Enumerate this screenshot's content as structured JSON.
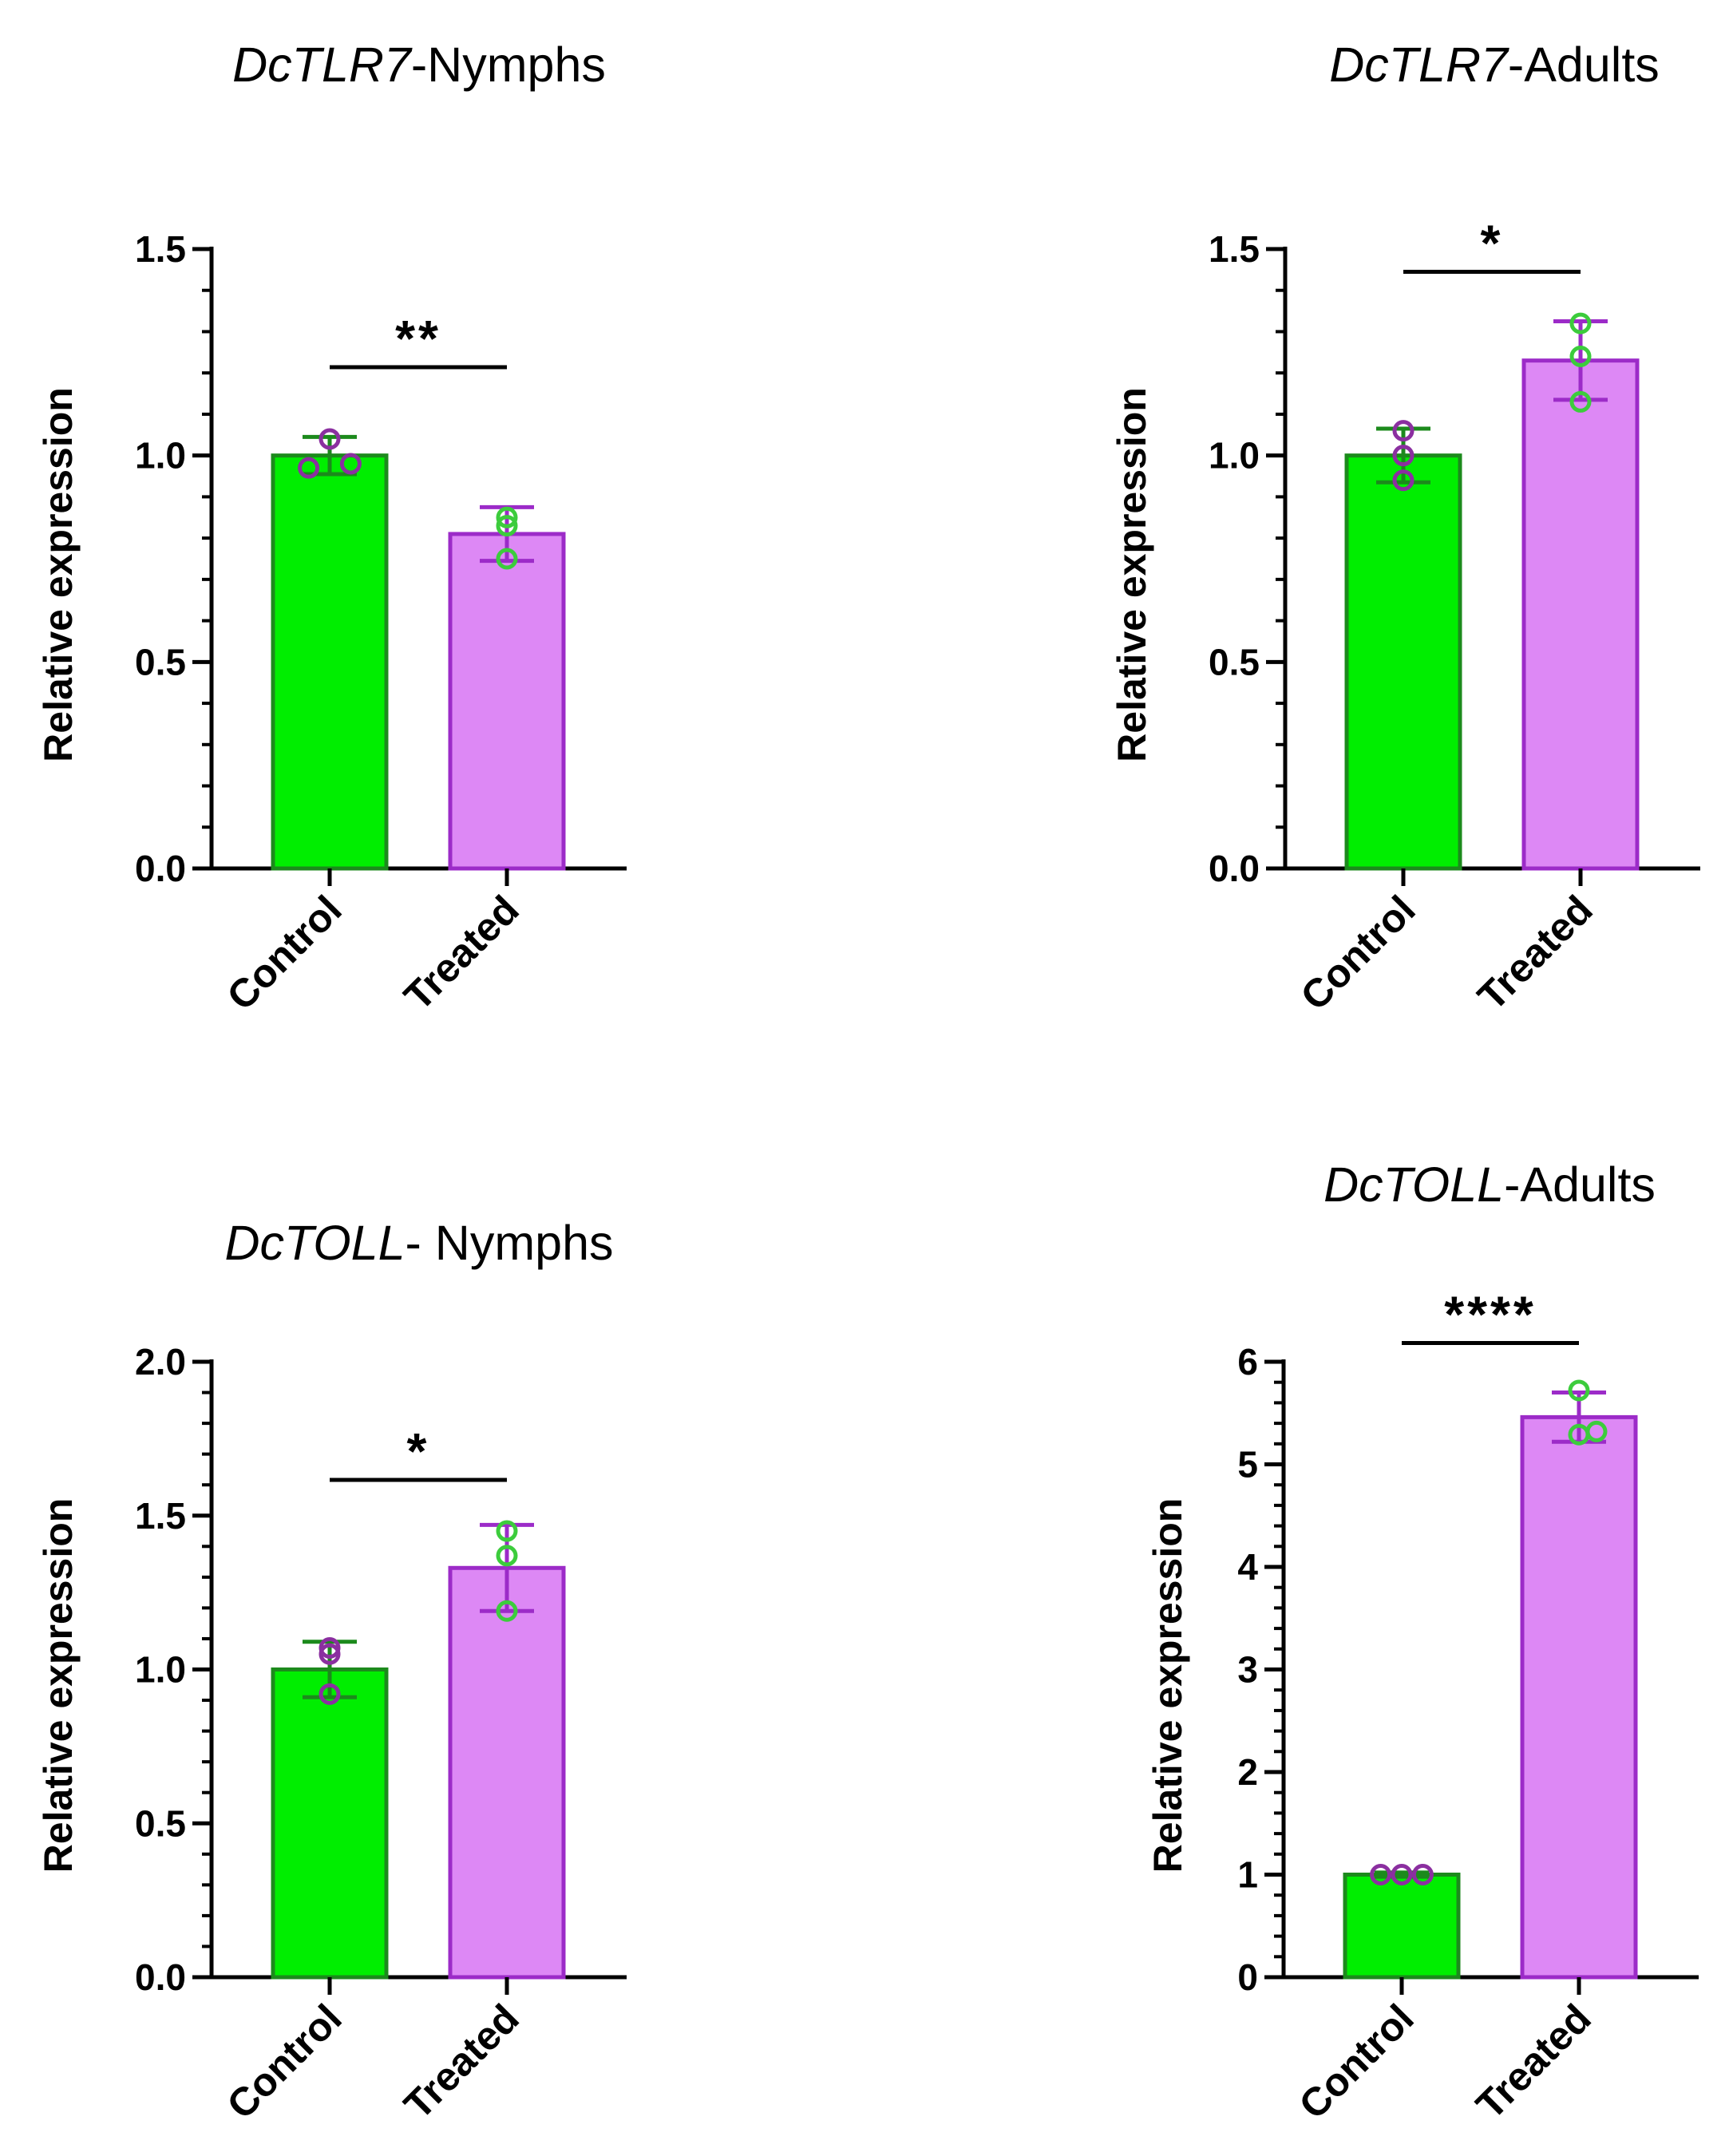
{
  "colors": {
    "control_fill": "#00ee00",
    "control_edge": "#1c8a1c",
    "treated_fill": "#dd88f5",
    "treated_edge": "#9c2bc8",
    "control_points": "#8b2fa0",
    "treated_points": "#3ccc3c",
    "axis": "#000000"
  },
  "chart_data": [
    {
      "type": "bar",
      "title_gene": "DcTLR7",
      "title_rest": "-Nymphs",
      "ylabel": "Relative expression",
      "categories": [
        "Control",
        "Treated"
      ],
      "values": [
        1.0,
        0.81
      ],
      "errors": [
        0.045,
        0.065
      ],
      "points": [
        [
          0.97,
          1.04,
          0.98
        ],
        [
          0.75,
          0.85,
          0.83
        ]
      ],
      "ylim": [
        0,
        1.5
      ],
      "yticks": [
        0.0,
        0.5,
        1.0,
        1.5
      ],
      "ytick_labels": [
        "0.0",
        "0.5",
        "1.0",
        "1.5"
      ],
      "minor_step": 0.1,
      "significance": "**"
    },
    {
      "type": "bar",
      "title_gene": "DcTLR7",
      "title_rest": "-Adults",
      "ylabel": "Relative expression",
      "categories": [
        "Control",
        "Treated"
      ],
      "values": [
        1.0,
        1.23
      ],
      "errors": [
        0.065,
        0.095
      ],
      "points": [
        [
          0.94,
          1.06,
          1.0
        ],
        [
          1.13,
          1.32,
          1.24
        ]
      ],
      "ylim": [
        0,
        1.5
      ],
      "yticks": [
        0.0,
        0.5,
        1.0,
        1.5
      ],
      "ytick_labels": [
        "0.0",
        "0.5",
        "1.0",
        "1.5"
      ],
      "minor_step": 0.1,
      "significance": "*"
    },
    {
      "type": "bar",
      "title_gene": "DcTOLL",
      "title_rest": "- Nymphs",
      "ylabel": "Relative expression",
      "categories": [
        "Control",
        "Treated"
      ],
      "values": [
        1.0,
        1.33
      ],
      "errors": [
        0.09,
        0.14
      ],
      "points": [
        [
          0.92,
          1.07,
          1.05
        ],
        [
          1.19,
          1.45,
          1.37
        ]
      ],
      "ylim": [
        0,
        2.0
      ],
      "yticks": [
        0.0,
        0.5,
        1.0,
        1.5,
        2.0
      ],
      "ytick_labels": [
        "0.0",
        "0.5",
        "1.0",
        "1.5",
        "2.0"
      ],
      "minor_step": 0.1,
      "significance": "*"
    },
    {
      "type": "bar",
      "title_gene": "DcTOLL",
      "title_rest": "-Adults",
      "ylabel": "Relative expression",
      "categories": [
        "Control",
        "Treated"
      ],
      "values": [
        1.0,
        5.46
      ],
      "errors": [
        0.02,
        0.24
      ],
      "points": [
        [
          1.0,
          1.0,
          1.0
        ],
        [
          5.29,
          5.72,
          5.32
        ]
      ],
      "ylim": [
        0,
        6
      ],
      "yticks": [
        0,
        1,
        2,
        3,
        4,
        5,
        6
      ],
      "ytick_labels": [
        "0",
        "1",
        "2",
        "3",
        "4",
        "5",
        "6"
      ],
      "minor_step": 0.2,
      "significance": "****"
    }
  ]
}
